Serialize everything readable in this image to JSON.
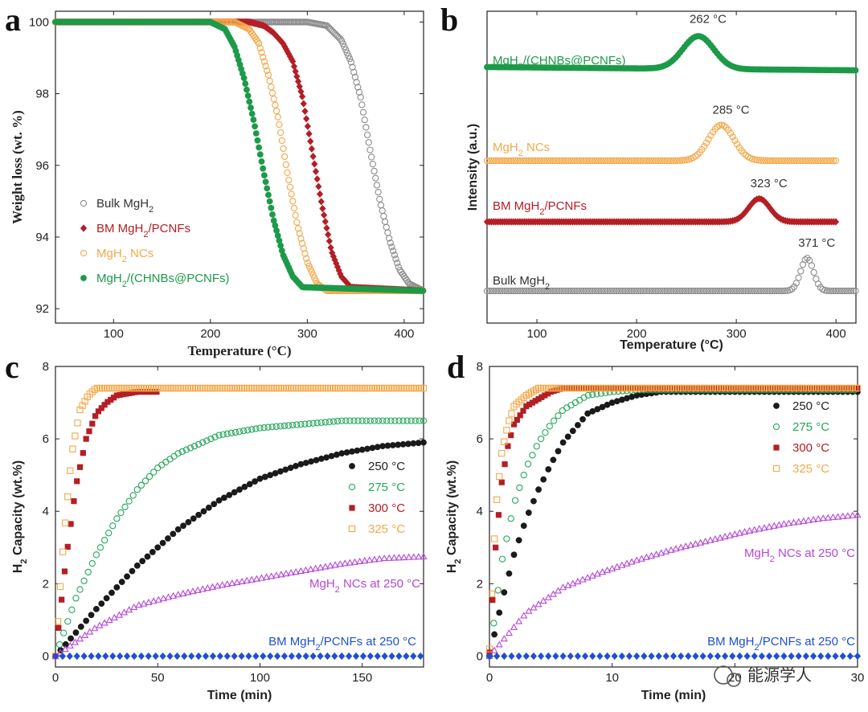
{
  "watermark": "能源学人",
  "colors": {
    "bulk": "#8c8c8c",
    "bm": "#b41e24",
    "ncs": "#f3a84a",
    "chnbs": "#1c9a49",
    "bm250": "#1f4fd1",
    "purple": "#b646d8",
    "black": "#1a1a1a",
    "green_leg": "#25a85a",
    "red_leg": "#b41e24",
    "orange_leg": "#f3a84a"
  },
  "chart_data": [
    {
      "id": "a",
      "panel_label": "a",
      "type": "scatter",
      "xlabel": "Temperature (°C)",
      "ylabel": "Weight loss (wt. %)",
      "xlim": [
        40,
        420
      ],
      "ylim": [
        91.6,
        100.3
      ],
      "xticks": [
        100,
        200,
        300,
        400
      ],
      "yticks": [
        92,
        94,
        96,
        98,
        100
      ],
      "legend": [
        "Bulk MgH2",
        "BM MgH2/PCNFs",
        "MgH2 NCs",
        "MgH2/(CHNBs@PCNFs)"
      ],
      "legend_placement": "lower-left",
      "series": [
        {
          "name": "Bulk MgH2",
          "marker": "circle-open",
          "x": [
            40,
            300,
            320,
            335,
            345,
            355,
            365,
            375,
            385,
            395,
            405,
            420
          ],
          "y": [
            100,
            100,
            99.9,
            99.5,
            98.9,
            97.9,
            96.4,
            95.0,
            93.9,
            93.1,
            92.7,
            92.5
          ]
        },
        {
          "name": "BM MgH2/PCNFs",
          "marker": "diamond",
          "x": [
            40,
            240,
            255,
            265,
            275,
            285,
            295,
            305,
            315,
            325,
            335,
            345,
            420
          ],
          "y": [
            100,
            100,
            99.9,
            99.7,
            99.4,
            98.9,
            97.9,
            96.4,
            94.9,
            93.6,
            92.9,
            92.6,
            92.5
          ]
        },
        {
          "name": "MgH2 NCs",
          "marker": "circle-open",
          "x": [
            40,
            225,
            240,
            250,
            260,
            270,
            280,
            290,
            300,
            310,
            320,
            420
          ],
          "y": [
            100,
            100,
            99.8,
            99.4,
            98.5,
            97.3,
            95.7,
            94.3,
            93.3,
            92.7,
            92.5,
            92.5
          ]
        },
        {
          "name": "MgH2/(CHNBs@PCNFs)",
          "marker": "circle-filled",
          "x": [
            40,
            200,
            215,
            225,
            235,
            245,
            255,
            265,
            275,
            285,
            295,
            420
          ],
          "y": [
            100,
            100,
            99.8,
            99.3,
            98.4,
            97.2,
            95.8,
            94.5,
            93.5,
            92.9,
            92.6,
            92.5
          ]
        }
      ]
    },
    {
      "id": "b",
      "panel_label": "b",
      "type": "line",
      "xlabel": "Temperature (°C)",
      "ylabel": "Intensity (a.u.)",
      "xlim": [
        50,
        420
      ],
      "xticks": [
        100,
        200,
        300,
        400
      ],
      "yticks": [],
      "series": [
        {
          "name": "MgH2/(CHNBs@PCNFs)",
          "peak_label": "262 °C",
          "peak_x": 262,
          "baseline_start": 0.88,
          "baseline_end": 0.54,
          "peak_height": 3.4,
          "width": 22,
          "x_start": 50,
          "x_end": 420
        },
        {
          "name": "MgH2 NCs",
          "peak_label": "285 °C",
          "peak_x": 285,
          "baseline_start": 0.0,
          "baseline_end": 0.0,
          "peak_height": 3.7,
          "width": 18,
          "x_start": 50,
          "x_end": 400
        },
        {
          "name": "BM MgH2/PCNFs",
          "peak_label": "323 °C",
          "peak_x": 323,
          "baseline_start": 0.0,
          "baseline_end": 0.0,
          "peak_height": 2.4,
          "width": 15,
          "x_start": 50,
          "x_end": 400
        },
        {
          "name": "Bulk MgH2",
          "peak_label": "371 °C",
          "peak_x": 371,
          "baseline_start": 0.0,
          "baseline_end": 0.0,
          "peak_height": 3.4,
          "width": 9,
          "x_start": 50,
          "x_end": 420
        }
      ]
    },
    {
      "id": "c",
      "panel_label": "c",
      "type": "scatter",
      "xlabel": "Time (min)",
      "ylabel": "H2 Capacity (wt.%)",
      "xlim": [
        0,
        180
      ],
      "ylim": [
        -0.3,
        8
      ],
      "xticks": [
        0,
        50,
        100,
        150
      ],
      "yticks": [
        0,
        2,
        4,
        6,
        8
      ],
      "legend": [
        "250 °C",
        "275 °C",
        "300 °C",
        "325 °C"
      ],
      "legend_placement": "center-right",
      "annotations": [
        "MgH2 NCs at 250 °C",
        "BM MgH2/PCNFs at 250 °C"
      ],
      "series": [
        {
          "name": "250 °C",
          "marker": "circle-filled",
          "x": [
            0,
            20,
            40,
            60,
            80,
            100,
            120,
            140,
            160,
            180
          ],
          "y": [
            0,
            1.3,
            2.5,
            3.5,
            4.3,
            4.9,
            5.3,
            5.6,
            5.8,
            5.9
          ]
        },
        {
          "name": "275 °C",
          "marker": "circle-open",
          "x": [
            0,
            10,
            20,
            30,
            40,
            50,
            60,
            80,
            100,
            120,
            140,
            180
          ],
          "y": [
            0,
            1.6,
            2.8,
            3.8,
            4.6,
            5.2,
            5.6,
            6.1,
            6.3,
            6.4,
            6.5,
            6.5
          ]
        },
        {
          "name": "300 °C",
          "marker": "square-filled",
          "x": [
            0,
            5,
            10,
            15,
            20,
            25,
            30,
            40,
            50
          ],
          "y": [
            0,
            2.6,
            4.7,
            6.0,
            6.7,
            7.0,
            7.2,
            7.3,
            7.3
          ]
        },
        {
          "name": "325 °C",
          "marker": "square-open",
          "x": [
            0,
            4,
            8,
            12,
            16,
            20,
            25,
            30,
            180
          ],
          "y": [
            0,
            3.2,
            5.6,
            6.8,
            7.2,
            7.4,
            7.4,
            7.4,
            7.4
          ]
        },
        {
          "name": "MgH2 NCs at 250 °C",
          "marker": "triangle",
          "x": [
            0,
            20,
            40,
            60,
            80,
            100,
            120,
            140,
            160,
            180
          ],
          "y": [
            0,
            0.8,
            1.4,
            1.7,
            1.95,
            2.15,
            2.35,
            2.55,
            2.7,
            2.75
          ]
        },
        {
          "name": "BM MgH2/PCNFs at 250 °C",
          "marker": "diamond",
          "x": [
            0,
            180
          ],
          "y": [
            0,
            0
          ]
        }
      ]
    },
    {
      "id": "d",
      "panel_label": "d",
      "type": "scatter",
      "xlabel": "Time (min)",
      "ylabel": "H2 Capacity (wt.%)",
      "xlim": [
        0,
        30
      ],
      "ylim": [
        -0.3,
        8
      ],
      "xticks": [
        0,
        10,
        20,
        30
      ],
      "yticks": [
        0,
        2,
        4,
        6,
        8
      ],
      "legend": [
        "250 °C",
        "275 °C",
        "300 °C",
        "325 °C"
      ],
      "legend_placement": "upper-right",
      "annotations": [
        "MgH2 NCs at 250 °C",
        "BM MgH2/PCNFs at 250 °C"
      ],
      "series": [
        {
          "name": "250 °C",
          "marker": "circle-filled",
          "x": [
            0,
            1,
            2,
            3,
            4,
            5,
            6,
            8,
            10,
            12,
            14,
            16,
            18,
            30
          ],
          "y": [
            0,
            1.5,
            2.8,
            3.8,
            4.6,
            5.3,
            5.9,
            6.7,
            7.0,
            7.2,
            7.3,
            7.3,
            7.3,
            7.3
          ]
        },
        {
          "name": "275 °C",
          "marker": "circle-open",
          "x": [
            0,
            1,
            2,
            3,
            4,
            5,
            6,
            8,
            10,
            12,
            30
          ],
          "y": [
            0,
            2.6,
            4.2,
            5.2,
            5.9,
            6.4,
            6.8,
            7.2,
            7.3,
            7.35,
            7.35
          ]
        },
        {
          "name": "300 °C",
          "marker": "square-filled",
          "x": [
            0,
            0.5,
            1,
            1.5,
            2,
            3,
            4,
            5,
            6,
            8,
            30
          ],
          "y": [
            0.1,
            3.0,
            4.8,
            5.8,
            6.4,
            6.9,
            7.1,
            7.3,
            7.4,
            7.4,
            7.4
          ]
        },
        {
          "name": "325 °C",
          "marker": "square-open",
          "x": [
            0,
            0.5,
            1,
            1.5,
            2,
            3,
            4,
            5,
            30
          ],
          "y": [
            0.2,
            4.0,
            5.6,
            6.4,
            6.9,
            7.2,
            7.4,
            7.4,
            7.4
          ]
        },
        {
          "name": "MgH2 NCs at 250 °C",
          "marker": "triangle",
          "x": [
            0,
            3,
            6,
            9,
            12,
            15,
            18,
            21,
            24,
            27,
            30
          ],
          "y": [
            0,
            1.2,
            1.9,
            2.3,
            2.65,
            2.95,
            3.2,
            3.45,
            3.65,
            3.8,
            3.9
          ]
        },
        {
          "name": "BM MgH2/PCNFs at 250 °C",
          "marker": "diamond",
          "x": [
            0,
            30
          ],
          "y": [
            0,
            0
          ]
        }
      ]
    }
  ]
}
